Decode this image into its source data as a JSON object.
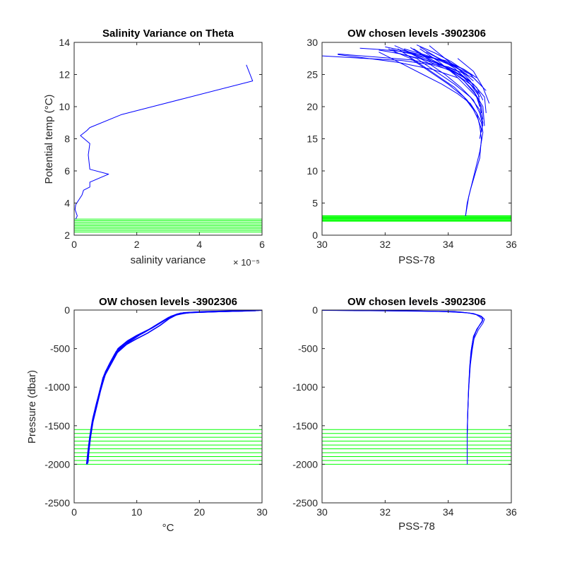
{
  "colors": {
    "profile": "#0000ff",
    "level": "#00ff00",
    "axes": "#262626"
  },
  "chart_data": [
    {
      "id": "p1",
      "type": "line",
      "title": "Salinity Variance on Theta",
      "xlabel": "salinity variance",
      "ylabel": "Potential temp (°C)",
      "xlim": [
        0,
        6e-05
      ],
      "ylim": [
        2,
        14
      ],
      "xticks": [
        0,
        2e-05,
        4e-05,
        6e-05
      ],
      "xtick_labels": [
        "0",
        "2",
        "4",
        "6"
      ],
      "x_exponent_label": "× 10⁻⁵",
      "yticks": [
        2,
        4,
        6,
        8,
        10,
        12,
        14
      ],
      "ytick_labels": [
        "2",
        "4",
        "6",
        "8",
        "10",
        "12",
        "14"
      ],
      "series": [
        {
          "x": [
            5.5e-05,
            5.7e-05,
            3.5e-05,
            2.5e-05,
            1.5e-05,
            5e-06,
            4e-06,
            2e-06,
            5e-06,
            4.5e-06,
            5e-06,
            1.1e-05,
            5e-06,
            5e-06,
            3e-06,
            2.5e-06,
            1.5e-06,
            5e-07,
            3e-07,
            1e-06,
            5e-07
          ],
          "y": [
            12.6,
            11.6,
            10.5,
            10.0,
            9.5,
            8.7,
            8.5,
            8.2,
            7.7,
            7.0,
            6.1,
            5.8,
            5.3,
            5.0,
            4.8,
            4.5,
            4.2,
            3.9,
            3.6,
            3.2,
            3.0
          ]
        }
      ],
      "level_lines": [
        2.2,
        2.3,
        2.4,
        2.5,
        2.6,
        2.7,
        2.8,
        2.9,
        3.0
      ]
    },
    {
      "id": "p2",
      "type": "line",
      "title": "OW chosen levels -3902306",
      "xlabel": "PSS-78",
      "ylabel": "",
      "xlim": [
        30,
        36
      ],
      "ylim": [
        0,
        30
      ],
      "xticks": [
        30,
        32,
        34,
        36
      ],
      "xtick_labels": [
        "30",
        "32",
        "34",
        "36"
      ],
      "yticks": [
        0,
        5,
        10,
        15,
        20,
        25,
        30
      ],
      "ytick_labels": [
        "0",
        "5",
        "10",
        "15",
        "20",
        "25",
        "30"
      ],
      "series": [
        {
          "x": [
            34.55,
            34.6,
            34.7,
            34.85,
            35.0,
            35.05,
            35.0,
            34.9,
            34.7,
            34.3,
            33.8,
            33.2,
            32.6,
            31.8
          ],
          "y": [
            3,
            5,
            7,
            9.5,
            12,
            15,
            17,
            19,
            20.5,
            22,
            23.5,
            25,
            26.5,
            28.5
          ]
        },
        {
          "x": [
            34.55,
            34.65,
            34.8,
            35.0,
            35.1,
            35.05,
            34.9,
            34.6,
            34.2,
            33.6,
            33.0,
            32.4
          ],
          "y": [
            3,
            6,
            9,
            13,
            16,
            17.5,
            19,
            21,
            23,
            25,
            27,
            29
          ]
        },
        {
          "x": [
            35.0,
            35.05,
            34.95,
            34.8,
            34.5,
            34.0,
            33.4,
            32.8,
            32.1
          ],
          "y": [
            15,
            16.5,
            18,
            19.5,
            21.5,
            23.5,
            25.5,
            27.5,
            29
          ]
        },
        {
          "x": [
            35.1,
            35.0,
            34.8,
            34.4,
            33.9,
            33.3,
            32.6
          ],
          "y": [
            17,
            19,
            21,
            23,
            25,
            27,
            28.8
          ]
        },
        {
          "x": [
            35.05,
            35.1,
            35.0,
            34.7,
            34.2,
            33.6,
            33.0,
            32.3
          ],
          "y": [
            16,
            17.5,
            19.5,
            21.5,
            23.5,
            25.5,
            27.5,
            28.5
          ]
        },
        {
          "x": [
            35.1,
            35.05,
            34.85,
            34.5,
            34.0,
            33.4,
            32.9
          ],
          "y": [
            18,
            20,
            22,
            24,
            26,
            27.5,
            29
          ]
        },
        {
          "x": [
            35.0,
            34.9,
            34.6,
            34.2,
            33.7,
            33.1
          ],
          "y": [
            20,
            21.5,
            23,
            25,
            27,
            29
          ]
        },
        {
          "x": [
            35.15,
            35.1,
            34.8,
            34.4,
            33.8,
            33.2
          ],
          "y": [
            17,
            20,
            22.5,
            24.5,
            26.5,
            28
          ]
        },
        {
          "x": [
            35.05,
            34.95,
            34.7,
            34.3,
            33.9,
            33.4
          ],
          "y": [
            19,
            22,
            24,
            26,
            27.5,
            29.5
          ]
        },
        {
          "x": [
            34.9,
            34.6,
            34.2,
            33.7,
            33.3
          ],
          "y": [
            22.5,
            24,
            26,
            27.5,
            28.5
          ]
        },
        {
          "x": [
            35.1,
            34.9,
            34.3,
            33.5,
            32.5,
            31.8
          ],
          "y": [
            21,
            23,
            25.5,
            27,
            28.2,
            28.8
          ]
        },
        {
          "x": [
            35.0,
            34.7,
            34.1,
            33.4,
            32.7
          ],
          "y": [
            21.5,
            23.5,
            25.5,
            27,
            28.5
          ]
        },
        {
          "x": [
            34.8,
            34.3,
            33.6,
            33.1
          ],
          "y": [
            24,
            26,
            27.8,
            29.3
          ]
        },
        {
          "x": [
            35.2,
            35.15,
            34.8,
            34.2,
            33.5,
            32.8
          ],
          "y": [
            19,
            21.5,
            23.5,
            25.5,
            27,
            29.2
          ]
        },
        {
          "x": [
            34.9,
            34.5,
            33.9,
            33.0,
            32.2
          ],
          "y": [
            24.5,
            25.8,
            27.2,
            28,
            28.9
          ]
        },
        {
          "x": [
            35.2,
            34.8,
            34.0,
            32.8,
            31.5,
            30.5
          ],
          "y": [
            22.5,
            24.5,
            26.2,
            27.3,
            27.8,
            28.2
          ]
        },
        {
          "x": [
            34.7,
            34.2,
            33.5,
            32.5,
            31.0,
            30.0
          ],
          "y": [
            24.0,
            25.5,
            26.5,
            27.2,
            27.6,
            27.9
          ]
        },
        {
          "x": [
            35.0,
            34.5,
            33.8,
            33.0,
            32.3
          ],
          "y": [
            22.0,
            24.5,
            26.5,
            28.0,
            29.5
          ]
        },
        {
          "x": [
            34.6,
            34.0,
            33.3,
            32.6
          ],
          "y": [
            25.0,
            26.8,
            28.0,
            29.0
          ]
        },
        {
          "x": [
            35.1,
            34.7,
            34.1,
            33.6,
            33.0
          ],
          "y": [
            23.0,
            25.0,
            27.0,
            28.3,
            29.6
          ]
        },
        {
          "x": [
            34.4,
            33.8,
            33.2,
            32.5,
            31.8,
            31.2
          ],
          "y": [
            26.0,
            27.2,
            28.0,
            28.6,
            28.9,
            29.1
          ]
        },
        {
          "x": [
            35.3,
            35.1,
            34.8,
            34.3
          ],
          "y": [
            20.5,
            23.0,
            25.5,
            27.5
          ]
        },
        {
          "x": [
            34.3,
            33.5,
            32.4,
            31.3,
            30.5
          ],
          "y": [
            24.5,
            25.8,
            26.9,
            27.6,
            28.1
          ]
        },
        {
          "x": [
            34.8,
            34.2,
            33.5,
            32.7,
            32.0
          ],
          "y": [
            24.8,
            26.2,
            27.6,
            28.6,
            29.3
          ]
        }
      ],
      "level_lines": [
        2.2,
        2.4,
        2.6,
        2.8,
        3.0
      ]
    },
    {
      "id": "p3",
      "type": "line",
      "title": "OW chosen levels -3902306",
      "xlabel": "°C",
      "ylabel": "Pressure (dbar)",
      "xlim": [
        0,
        30
      ],
      "ylim": [
        -2500,
        0
      ],
      "xticks": [
        0,
        10,
        20,
        30
      ],
      "xtick_labels": [
        "0",
        "10",
        "20",
        "30"
      ],
      "yticks": [
        -2500,
        -2000,
        -1500,
        -1000,
        -500,
        0
      ],
      "ytick_labels": [
        "-2500",
        "-2000",
        "-1500",
        "-1000",
        "-500",
        "0"
      ],
      "series": [
        {
          "x": [
            29.5,
            25,
            20,
            17,
            15.5,
            14,
            12,
            10,
            8.5,
            7,
            6,
            5,
            4.3,
            3.6,
            3.0,
            2.6,
            2.3,
            2.1
          ],
          "y": [
            -5,
            -15,
            -25,
            -40,
            -80,
            -150,
            -250,
            -330,
            -400,
            -500,
            -650,
            -800,
            -1000,
            -1200,
            -1400,
            -1600,
            -1800,
            -2000
          ]
        },
        {
          "x": [
            29.0,
            24,
            19,
            16.5,
            15.0,
            13.2,
            11.2,
            9.3,
            8.0,
            6.7,
            5.7,
            4.8,
            4.1,
            3.5,
            2.9,
            2.5,
            2.2,
            2.0
          ],
          "y": [
            -8,
            -18,
            -30,
            -50,
            -100,
            -190,
            -290,
            -370,
            -440,
            -540,
            -690,
            -840,
            -1040,
            -1240,
            -1440,
            -1640,
            -1840,
            -2000
          ]
        },
        {
          "x": [
            28.0,
            23,
            18,
            16,
            14.5,
            12.5,
            10.5,
            9.0,
            7.8,
            6.5,
            5.5,
            4.6,
            4.0,
            3.4,
            2.9,
            2.5,
            2.2,
            2.0
          ],
          "y": [
            -10,
            -20,
            -35,
            -70,
            -130,
            -230,
            -320,
            -400,
            -470,
            -570,
            -720,
            -880,
            -1080,
            -1280,
            -1480,
            -1680,
            -1880,
            -2000
          ]
        },
        {
          "x": [
            30.0,
            26,
            21,
            17.5,
            16.0,
            14.5,
            12.5,
            10.5,
            9.0,
            7.3,
            6.2,
            5.2,
            4.4,
            3.7,
            3.1,
            2.7,
            2.4,
            2.2
          ],
          "y": [
            -3,
            -10,
            -20,
            -35,
            -70,
            -130,
            -230,
            -310,
            -380,
            -480,
            -630,
            -780,
            -980,
            -1180,
            -1380,
            -1580,
            -1780,
            -1980
          ]
        },
        {
          "x": [
            27.0,
            22,
            18.5,
            16.5,
            15.2,
            13.7,
            11.7,
            9.8,
            8.3,
            6.9,
            5.9,
            4.9,
            4.2,
            3.6,
            3.0,
            2.6,
            2.3,
            2.1
          ],
          "y": [
            -12,
            -22,
            -32,
            -55,
            -110,
            -200,
            -300,
            -380,
            -450,
            -550,
            -700,
            -850,
            -1050,
            -1250,
            -1450,
            -1650,
            -1850,
            -1990
          ]
        }
      ],
      "level_lines": [
        -1550,
        -1600,
        -1650,
        -1700,
        -1750,
        -1800,
        -1850,
        -1900,
        -1950,
        -2000
      ]
    },
    {
      "id": "p4",
      "type": "line",
      "title": "OW chosen levels -3902306",
      "xlabel": "PSS-78",
      "ylabel": "",
      "xlim": [
        30,
        36
      ],
      "ylim": [
        -2500,
        0
      ],
      "xticks": [
        30,
        32,
        34,
        36
      ],
      "xtick_labels": [
        "30",
        "32",
        "34",
        "36"
      ],
      "yticks": [
        -2500,
        -2000,
        -1500,
        -1000,
        -500,
        0
      ],
      "ytick_labels": [
        "-2500",
        "-2000",
        "-1500",
        "-1000",
        "-500",
        "0"
      ],
      "series": [
        {
          "x": [
            30.0,
            32.0,
            34.0,
            34.7,
            35.0,
            35.1,
            35.05,
            34.9,
            34.8,
            34.75,
            34.7,
            34.65,
            34.62,
            34.6,
            34.6
          ],
          "y": [
            -5,
            -10,
            -20,
            -40,
            -70,
            -110,
            -160,
            -250,
            -350,
            -500,
            -700,
            -1000,
            -1300,
            -1600,
            -2000
          ]
        },
        {
          "x": [
            30.5,
            32.5,
            34.2,
            34.8,
            35.05,
            35.15,
            35.1,
            34.95,
            34.82,
            34.76,
            34.7,
            34.65,
            34.62,
            34.6,
            34.6
          ],
          "y": [
            -3,
            -8,
            -18,
            -45,
            -80,
            -120,
            -170,
            -260,
            -370,
            -520,
            -720,
            -1020,
            -1320,
            -1620,
            -2000
          ]
        },
        {
          "x": [
            31.0,
            33.0,
            34.4,
            34.85,
            35.0,
            35.1,
            35.0,
            34.88,
            34.78,
            34.72,
            34.68,
            34.64,
            34.62,
            34.6,
            34.6
          ],
          "y": [
            -6,
            -12,
            -25,
            -50,
            -90,
            -130,
            -190,
            -280,
            -390,
            -540,
            -740,
            -1040,
            -1340,
            -1640,
            -2000
          ]
        },
        {
          "x": [
            30.2,
            31.5,
            33.5,
            34.6,
            34.95,
            35.1,
            35.08,
            34.92,
            34.8,
            34.74,
            34.69,
            34.65,
            34.62,
            34.6,
            34.6
          ],
          "y": [
            -4,
            -9,
            -15,
            -35,
            -65,
            -100,
            -150,
            -240,
            -340,
            -490,
            -690,
            -990,
            -1290,
            -1590,
            -2000
          ]
        }
      ],
      "level_lines": [
        -1550,
        -1600,
        -1650,
        -1700,
        -1750,
        -1800,
        -1850,
        -1900,
        -1950,
        -2000
      ]
    }
  ]
}
